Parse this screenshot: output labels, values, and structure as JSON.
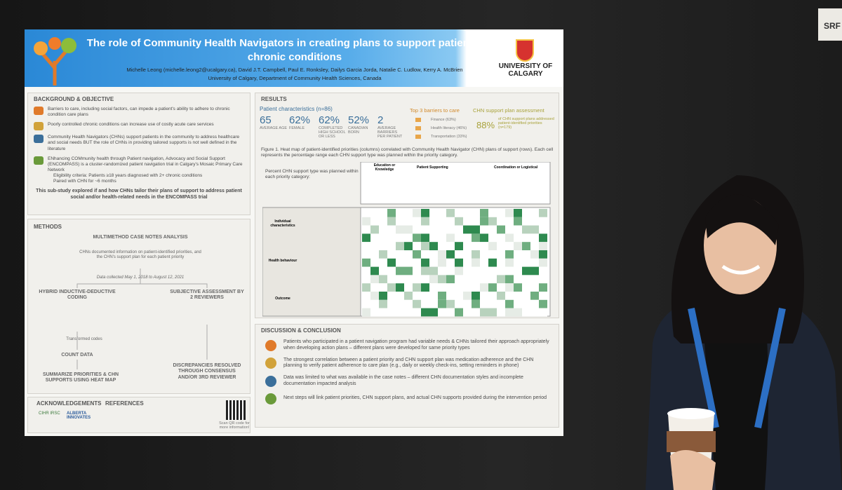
{
  "sign": "SRF",
  "header": {
    "title": "The role of Community Health Navigators in creating plans to support patients with chronic conditions",
    "authors": "Michelle Leong (michelle.leong2@ucalgary.ca), David J.T. Campbell, Paul E. Ronksley, Dailys Garcia Jorda, Natalie C. Ludlow, Kerry A. McBrien",
    "affiliation": "University of Calgary, Department of Community Health Sciences, Canada",
    "university": "UNIVERSITY OF CALGARY"
  },
  "background": {
    "heading": "BACKGROUND & OBJECTIVE",
    "items": [
      "Barriers to care, including social factors, can impede a patient's ability to adhere to chronic condition care plans",
      "Poorly controlled chronic conditions can increase use of costly acute care services",
      "Community Health Navigators (CHNs) support patients in the community to address healthcare and social needs BUT the role of CHNs in providing tailored supports is not well defined in the literature",
      "ENhancing COMmunity health through Patient navigation, Advocacy and Social Support (ENCOMPASS) is a cluster-randomized patient navigation trial in Calgary's Mosaic Primary Care Network"
    ],
    "bullets": [
      "Eligibility criteria: Patients ≥18 years diagnosed with 2+ chronic conditions",
      "Paired with CHN for ~6 months"
    ],
    "objective": "This sub-study explored if and how CHNs tailor their plans of support to address patient social and/or health-related needs in the ENCOMPASS trial"
  },
  "methods": {
    "heading": "METHODS",
    "nodes": [
      "MULTIMETHOD CASE NOTES ANALYSIS",
      "CHNs documented information on patient-identified priorities, and the CHN's support plan for each patient priority",
      "Data collected May 1, 2018 to August 12, 2021",
      "HYBRID INDUCTIVE-DEDUCTIVE CODING",
      "SUBJECTIVE ASSESSMENT BY 2 REVIEWERS",
      "Transformed codes",
      "COUNT DATA",
      "SUMMARIZE PRIORITIES & CHN SUPPORTS USING HEAT MAP",
      "DISCREPANCIES RESOLVED THROUGH CONSENSUS AND/OR 3RD REVIEWER"
    ]
  },
  "acknowledgements": {
    "heading": "ACKNOWLEDGEMENTS",
    "logos": [
      "CIHR IRSC",
      "ALBERTA INNOVATES"
    ]
  },
  "references": {
    "heading": "REFERENCES",
    "qr": "Scan QR code for more information!"
  },
  "results": {
    "heading": "RESULTS",
    "characteristics": {
      "heading": "Patient characteristics (n=86)",
      "stats": [
        {
          "value": "65",
          "label": "AVERAGE AGE"
        },
        {
          "value": "62%",
          "label": "FEMALE"
        },
        {
          "value": "62%",
          "label": "COMPLETED HIGH SCHOOL OR LESS"
        },
        {
          "value": "52%",
          "label": "CANADIAN BORN"
        },
        {
          "value": "2",
          "label": "AVERAGE BARRIERS PER PATIENT"
        }
      ]
    },
    "barriers": {
      "heading": "Top 3 barriers to care",
      "items": [
        "Finance (63%)",
        "Health literacy (46%)",
        "Transportation (33%)"
      ]
    },
    "assessment": {
      "heading": "CHN support plan assessment",
      "value": "88%",
      "text": "of CHN support plans addressed patient-identified priorities (n=179)"
    },
    "caption": "Figure 1. Heat map of patient-identified priorities (columns) correlated with Community Health Navigator (CHN) plans of support (rows). Each cell represents the percentage range each CHN support type was planned within the priority category.",
    "heatmap_label": "Percent CHN support type was planned within each priority category:",
    "column_groups": [
      "Education or Knowledge",
      "Patient Supporting",
      "Coordination or Logistical"
    ],
    "row_groups": [
      "Individual characteristics",
      "Health behaviour",
      "Outcome"
    ]
  },
  "discussion": {
    "heading": "DISCUSSION & CONCLUSION",
    "items": [
      "Patients who participated in a patient navigation program had variable needs & CHNs tailored their approach appropriately when developing action plans – different plans were developed for same priority types",
      "The strongest correlation between a patient priority and CHN support plan was medication adherence and the CHN planning to verify patient adherence to care plan (e.g., daily or weekly check-ins, setting reminders in phone)",
      "Data was limited to what was available in the case notes – different CHN documentation styles and incomplete documentation impacted analysis",
      "Next steps will link patient priorities, CHN support plans, and actual CHN supports provided during the intervention period"
    ]
  }
}
